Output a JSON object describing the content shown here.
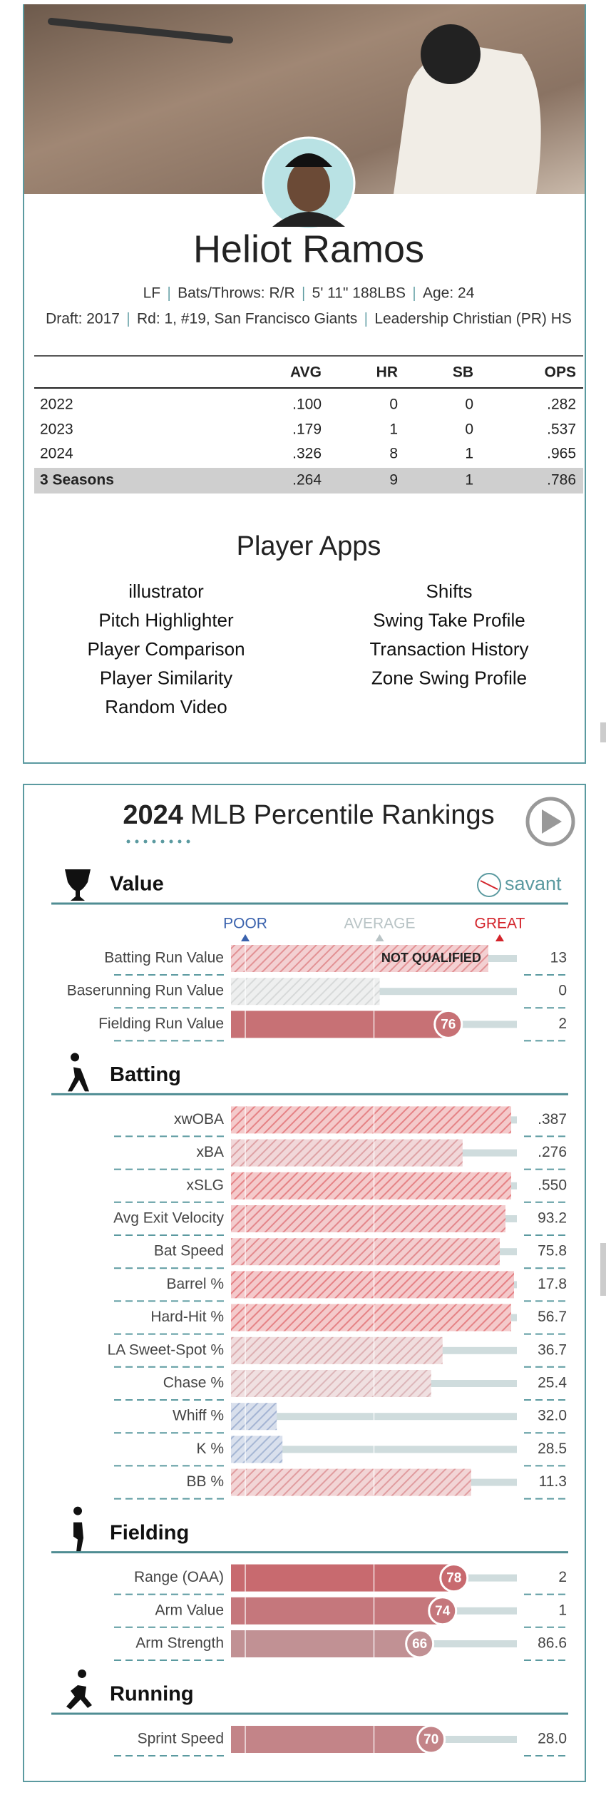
{
  "header": {
    "name": "Heliot Ramos",
    "bio": [
      "LF",
      "Bats/Throws: R/R",
      "5' 11\" 188LBS",
      "Age: 24"
    ],
    "draft": [
      "Draft: 2017",
      "Rd: 1, #19, San Francisco Giants",
      "Leadership Christian (PR) HS"
    ]
  },
  "stats": {
    "columns": [
      "AVG",
      "HR",
      "SB",
      "OPS"
    ],
    "rows": [
      {
        "label": "2022",
        "values": [
          ".100",
          "0",
          "0",
          ".282"
        ]
      },
      {
        "label": "2023",
        "values": [
          ".179",
          "1",
          "0",
          ".537"
        ]
      },
      {
        "label": "2024",
        "values": [
          ".326",
          "8",
          "1",
          ".965"
        ]
      },
      {
        "label": "3 Seasons",
        "values": [
          ".264",
          "9",
          "1",
          ".786"
        ]
      }
    ]
  },
  "apps": {
    "title": "Player Apps",
    "columns": [
      [
        "illustrator",
        "Pitch Highlighter",
        "Player Comparison",
        "Player Similarity",
        "Random Video"
      ],
      [
        "Shifts",
        "Swing Take Profile",
        "Transaction History",
        "Zone Swing Profile"
      ]
    ]
  },
  "percentiles": {
    "year": "2024",
    "title": "MLB Percentile Rankings",
    "brand": "savant",
    "legend": [
      "POOR",
      "AVERAGE",
      "GREAT"
    ],
    "colors": [
      "#3a62ad",
      "#b9c4c6",
      "#d3242b"
    ],
    "sections": [
      {
        "title": "Value",
        "metrics": [
          {
            "name": "Batting Run Value",
            "percentile": 90,
            "value": "13",
            "qualified": false,
            "note": "NOT QUALIFIED"
          },
          {
            "name": "Baserunning Run Value",
            "percentile": 52,
            "value": "0",
            "qualified": false
          },
          {
            "name": "Fielding Run Value",
            "percentile": 76,
            "value": "2",
            "qualified": true
          }
        ]
      },
      {
        "title": "Batting",
        "metrics": [
          {
            "name": "xwOBA",
            "percentile": 98,
            "value": ".387",
            "qualified": false
          },
          {
            "name": "xBA",
            "percentile": 81,
            "value": ".276",
            "qualified": false
          },
          {
            "name": "xSLG",
            "percentile": 98,
            "value": ".550",
            "qualified": false
          },
          {
            "name": "Avg Exit Velocity",
            "percentile": 96,
            "value": "93.2",
            "qualified": false
          },
          {
            "name": "Bat Speed",
            "percentile": 94,
            "value": "75.8",
            "qualified": false
          },
          {
            "name": "Barrel %",
            "percentile": 99,
            "value": "17.8",
            "qualified": false
          },
          {
            "name": "Hard-Hit %",
            "percentile": 98,
            "value": "56.7",
            "qualified": false
          },
          {
            "name": "LA Sweet-Spot %",
            "percentile": 74,
            "value": "36.7",
            "qualified": false
          },
          {
            "name": "Chase %",
            "percentile": 70,
            "value": "25.4",
            "qualified": false
          },
          {
            "name": "Whiff %",
            "percentile": 16,
            "value": "32.0",
            "qualified": false
          },
          {
            "name": "K %",
            "percentile": 18,
            "value": "28.5",
            "qualified": false
          },
          {
            "name": "BB %",
            "percentile": 84,
            "value": "11.3",
            "qualified": false
          }
        ]
      },
      {
        "title": "Fielding",
        "metrics": [
          {
            "name": "Range (OAA)",
            "percentile": 78,
            "value": "2",
            "qualified": true
          },
          {
            "name": "Arm Value",
            "percentile": 74,
            "value": "1",
            "qualified": true
          },
          {
            "name": "Arm Strength",
            "percentile": 66,
            "value": "86.6",
            "qualified": true
          }
        ]
      },
      {
        "title": "Running",
        "metrics": [
          {
            "name": "Sprint Speed",
            "percentile": 70,
            "value": "28.0",
            "qualified": true
          }
        ]
      }
    ]
  }
}
